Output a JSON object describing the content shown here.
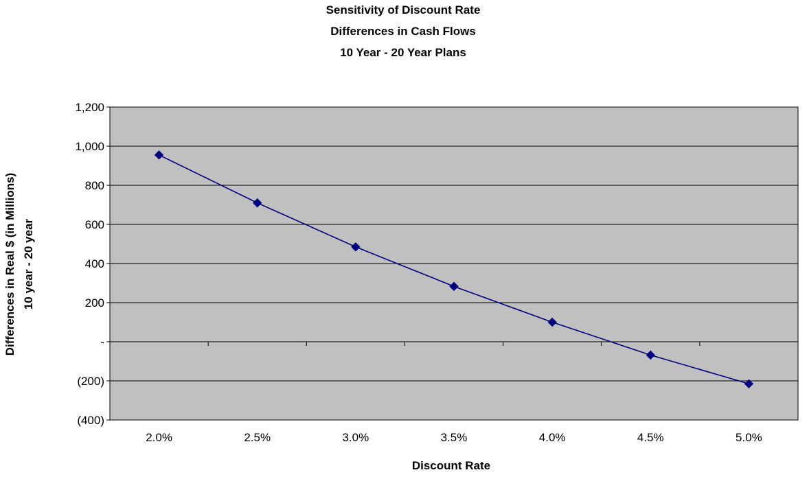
{
  "chart_data": {
    "type": "line",
    "title": [
      "Sensitivity of Discount Rate",
      "Differences in Cash Flows",
      "10 Year - 20 Year Plans"
    ],
    "xlabel": "Discount Rate",
    "ylabel": [
      "Differences in Real $ (in Millions)",
      "10 year - 20 year"
    ],
    "categories": [
      "2.0%",
      "2.5%",
      "3.0%",
      "3.5%",
      "4.0%",
      "4.5%",
      "5.0%"
    ],
    "series": [
      {
        "values": [
          955,
          710,
          485,
          283,
          100,
          -68,
          -215
        ]
      }
    ],
    "ylim": [
      -400,
      1200
    ],
    "yticks": [
      -400,
      -200,
      0,
      200,
      400,
      600,
      800,
      1000,
      1200
    ],
    "ytick_labels": [
      "(400)",
      "(200)",
      "-",
      "200",
      "400",
      "600",
      "800",
      "1,000",
      "1,200"
    ],
    "grid": true,
    "legend": "none",
    "colors": {
      "plot_background": "#c0c0c0",
      "line": "#000080",
      "marker": "#000080",
      "gridline": "#000000"
    }
  }
}
